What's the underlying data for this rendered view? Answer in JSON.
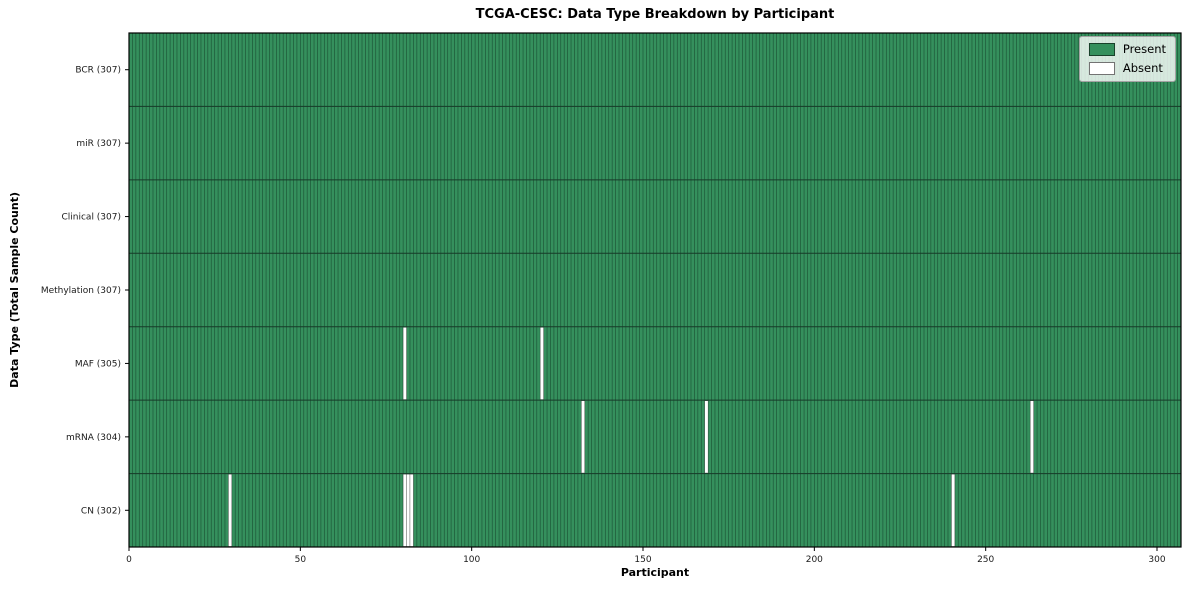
{
  "chart_data": {
    "type": "heatmap",
    "title": "TCGA-CESC: Data Type Breakdown by Participant",
    "xlabel": "Participant",
    "ylabel": "Data Type (Total Sample Count)",
    "n_participants": 307,
    "x_ticks": [
      0,
      50,
      100,
      150,
      200,
      250,
      300
    ],
    "rows": [
      {
        "label": "BCR (307)",
        "data_type": "BCR",
        "total": 307,
        "absent_participants": []
      },
      {
        "label": "miR (307)",
        "data_type": "miR",
        "total": 307,
        "absent_participants": []
      },
      {
        "label": "Clinical (307)",
        "data_type": "Clinical",
        "total": 307,
        "absent_participants": []
      },
      {
        "label": "Methylation (307)",
        "data_type": "Methylation",
        "total": 307,
        "absent_participants": []
      },
      {
        "label": "MAF (305)",
        "data_type": "MAF",
        "total": 305,
        "absent_participants": [
          80,
          120
        ]
      },
      {
        "label": "mRNA (304)",
        "data_type": "mRNA",
        "total": 304,
        "absent_participants": [
          132,
          168,
          263
        ]
      },
      {
        "label": "CN (302)",
        "data_type": "CN",
        "total": 302,
        "absent_participants": [
          29,
          80,
          81,
          82,
          240
        ]
      }
    ],
    "legend": [
      {
        "label": "Present",
        "color": "#35905d"
      },
      {
        "label": "Absent",
        "color": "#ffffff"
      }
    ],
    "colors": {
      "present": "#35905d",
      "absent": "#ffffff",
      "cell_edge": "rgba(10,40,25,0.55)",
      "row_line": "#173a28",
      "spine": "#000000",
      "tick_text": "#1a1a1a"
    },
    "legend_position": "upper right",
    "grid": false
  }
}
